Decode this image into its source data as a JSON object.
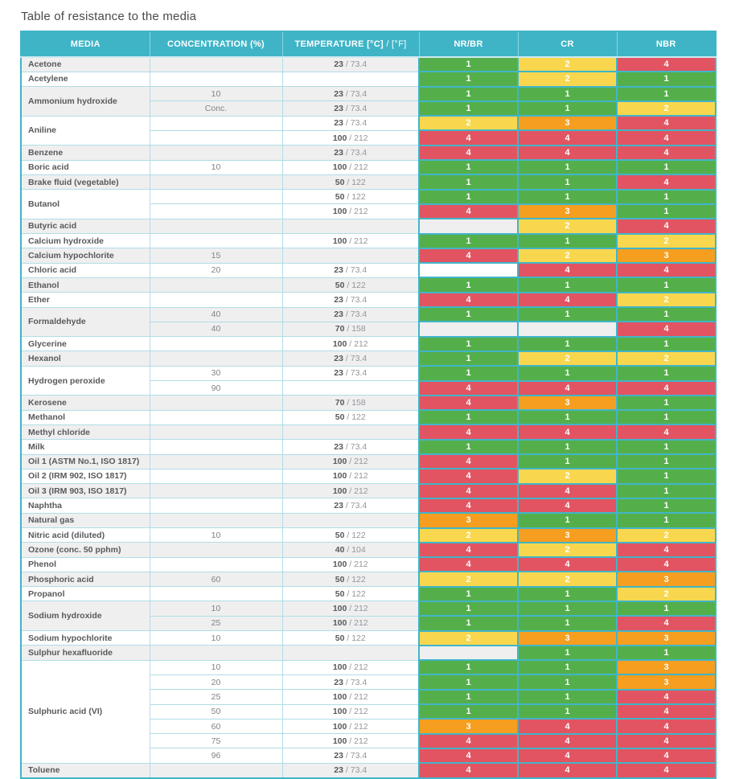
{
  "title": "Table of resistance to the media",
  "header": {
    "media": "MEDIA",
    "concentration": "CONCENTRATION (%)",
    "temperature_bold": "TEMPERATURE [°C]",
    "temperature_light": " / [°F]",
    "nr_br": "NR/BR",
    "cr": "CR",
    "nbr": "NBR"
  },
  "rating_colors": {
    "1": "#54af4b",
    "2": "#f8d74f",
    "3": "#f59e1f",
    "4": "#e25462"
  },
  "groups": [
    {
      "media": "Acetone",
      "rows": [
        {
          "conc": "",
          "temp_c": "23",
          "temp_f": "73.4",
          "nr_br": 1,
          "cr": 2,
          "nbr": 4
        }
      ]
    },
    {
      "media": "Acetylene",
      "rows": [
        {
          "conc": "",
          "temp_c": "",
          "temp_f": "",
          "nr_br": 1,
          "cr": 2,
          "nbr": 1
        }
      ]
    },
    {
      "media": "Ammonium hydroxide",
      "rows": [
        {
          "conc": "10",
          "temp_c": "23",
          "temp_f": "73.4",
          "nr_br": 1,
          "cr": 1,
          "nbr": 1
        },
        {
          "conc": "Conc.",
          "temp_c": "23",
          "temp_f": "73.4",
          "nr_br": 1,
          "cr": 1,
          "nbr": 2
        }
      ]
    },
    {
      "media": "Aniline",
      "rows": [
        {
          "conc": "",
          "temp_c": "23",
          "temp_f": "73.4",
          "nr_br": 2,
          "cr": 3,
          "nbr": 4
        },
        {
          "conc": "",
          "temp_c": "100",
          "temp_f": "212",
          "nr_br": 4,
          "cr": 4,
          "nbr": 4
        }
      ]
    },
    {
      "media": "Benzene",
      "rows": [
        {
          "conc": "",
          "temp_c": "23",
          "temp_f": "73.4",
          "nr_br": 4,
          "cr": 4,
          "nbr": 4
        }
      ]
    },
    {
      "media": "Boric acid",
      "rows": [
        {
          "conc": "10",
          "temp_c": "100",
          "temp_f": "212",
          "nr_br": 1,
          "cr": 1,
          "nbr": 1
        }
      ]
    },
    {
      "media": "Brake fluid (vegetable)",
      "rows": [
        {
          "conc": "",
          "temp_c": "50",
          "temp_f": "122",
          "nr_br": 1,
          "cr": 1,
          "nbr": 4
        }
      ]
    },
    {
      "media": "Butanol",
      "rows": [
        {
          "conc": "",
          "temp_c": "50",
          "temp_f": "122",
          "nr_br": 1,
          "cr": 1,
          "nbr": 1
        },
        {
          "conc": "",
          "temp_c": "100",
          "temp_f": "212",
          "nr_br": 4,
          "cr": 3,
          "nbr": 1
        }
      ]
    },
    {
      "media": "Butyric acid",
      "rows": [
        {
          "conc": "",
          "temp_c": "",
          "temp_f": "",
          "nr_br": null,
          "cr": 2,
          "nbr": 4
        }
      ]
    },
    {
      "media": "Calcium hydroxide",
      "rows": [
        {
          "conc": "",
          "temp_c": "100",
          "temp_f": "212",
          "nr_br": 1,
          "cr": 1,
          "nbr": 2
        }
      ]
    },
    {
      "media": "Calcium hypochlorite",
      "rows": [
        {
          "conc": "15",
          "temp_c": "",
          "temp_f": "",
          "nr_br": 4,
          "cr": 2,
          "nbr": 3
        }
      ]
    },
    {
      "media": "Chloric acid",
      "rows": [
        {
          "conc": "20",
          "temp_c": "23",
          "temp_f": "73.4",
          "nr_br": null,
          "cr": 4,
          "nbr": 4
        }
      ]
    },
    {
      "media": "Ethanol",
      "rows": [
        {
          "conc": "",
          "temp_c": "50",
          "temp_f": "122",
          "nr_br": 1,
          "cr": 1,
          "nbr": 1
        }
      ]
    },
    {
      "media": "Ether",
      "rows": [
        {
          "conc": "",
          "temp_c": "23",
          "temp_f": "73.4",
          "nr_br": 4,
          "cr": 4,
          "nbr": 2
        }
      ]
    },
    {
      "media": "Formaldehyde",
      "rows": [
        {
          "conc": "40",
          "temp_c": "23",
          "temp_f": "73.4",
          "nr_br": 1,
          "cr": 1,
          "nbr": 1
        },
        {
          "conc": "40",
          "temp_c": "70",
          "temp_f": "158",
          "nr_br": null,
          "cr": null,
          "nbr": 4
        }
      ]
    },
    {
      "media": "Glycerine",
      "rows": [
        {
          "conc": "",
          "temp_c": "100",
          "temp_f": "212",
          "nr_br": 1,
          "cr": 1,
          "nbr": 1
        }
      ]
    },
    {
      "media": "Hexanol",
      "rows": [
        {
          "conc": "",
          "temp_c": "23",
          "temp_f": "73.4",
          "nr_br": 1,
          "cr": 2,
          "nbr": 2
        }
      ]
    },
    {
      "media": "Hydrogen peroxide",
      "rows": [
        {
          "conc": "30",
          "temp_c": "23",
          "temp_f": "73.4",
          "nr_br": 1,
          "cr": 1,
          "nbr": 1
        },
        {
          "conc": "90",
          "temp_c": "",
          "temp_f": "",
          "nr_br": 4,
          "cr": 4,
          "nbr": 4
        }
      ]
    },
    {
      "media": "Kerosene",
      "rows": [
        {
          "conc": "",
          "temp_c": "70",
          "temp_f": "158",
          "nr_br": 4,
          "cr": 3,
          "nbr": 1
        }
      ]
    },
    {
      "media": "Methanol",
      "rows": [
        {
          "conc": "",
          "temp_c": "50",
          "temp_f": "122",
          "nr_br": 1,
          "cr": 1,
          "nbr": 1
        }
      ]
    },
    {
      "media": "Methyl chloride",
      "rows": [
        {
          "conc": "",
          "temp_c": "",
          "temp_f": "",
          "nr_br": 4,
          "cr": 4,
          "nbr": 4
        }
      ]
    },
    {
      "media": "Milk",
      "rows": [
        {
          "conc": "",
          "temp_c": "23",
          "temp_f": "73.4",
          "nr_br": 1,
          "cr": 1,
          "nbr": 1
        }
      ]
    },
    {
      "media": "Oil 1 (ASTM No.1, ISO 1817)",
      "rows": [
        {
          "conc": "",
          "temp_c": "100",
          "temp_f": "212",
          "nr_br": 4,
          "cr": 1,
          "nbr": 1
        }
      ]
    },
    {
      "media": "Oil 2 (IRM 902, ISO 1817)",
      "rows": [
        {
          "conc": "",
          "temp_c": "100",
          "temp_f": "212",
          "nr_br": 4,
          "cr": 2,
          "nbr": 1
        }
      ]
    },
    {
      "media": "Oil 3 (IRM 903, ISO 1817)",
      "rows": [
        {
          "conc": "",
          "temp_c": "100",
          "temp_f": "212",
          "nr_br": 4,
          "cr": 4,
          "nbr": 1
        }
      ]
    },
    {
      "media": "Naphtha",
      "rows": [
        {
          "conc": "",
          "temp_c": "23",
          "temp_f": "73.4",
          "nr_br": 4,
          "cr": 4,
          "nbr": 1
        }
      ]
    },
    {
      "media": "Natural gas",
      "rows": [
        {
          "conc": "",
          "temp_c": "",
          "temp_f": "",
          "nr_br": 3,
          "cr": 1,
          "nbr": 1
        }
      ]
    },
    {
      "media": "Nitric acid (diluted)",
      "rows": [
        {
          "conc": "10",
          "temp_c": "50",
          "temp_f": "122",
          "nr_br": 2,
          "cr": 3,
          "nbr": 2
        }
      ]
    },
    {
      "media": "Ozone (conc. 50 pphm)",
      "rows": [
        {
          "conc": "",
          "temp_c": "40",
          "temp_f": "104",
          "nr_br": 4,
          "cr": 2,
          "nbr": 4
        }
      ]
    },
    {
      "media": "Phenol",
      "rows": [
        {
          "conc": "",
          "temp_c": "100",
          "temp_f": "212",
          "nr_br": 4,
          "cr": 4,
          "nbr": 4
        }
      ]
    },
    {
      "media": "Phosphoric acid",
      "rows": [
        {
          "conc": "60",
          "temp_c": "50",
          "temp_f": "122",
          "nr_br": 2,
          "cr": 2,
          "nbr": 3
        }
      ]
    },
    {
      "media": "Propanol",
      "rows": [
        {
          "conc": "",
          "temp_c": "50",
          "temp_f": "122",
          "nr_br": 1,
          "cr": 1,
          "nbr": 2
        }
      ]
    },
    {
      "media": "Sodium hydroxide",
      "rows": [
        {
          "conc": "10",
          "temp_c": "100",
          "temp_f": "212",
          "nr_br": 1,
          "cr": 1,
          "nbr": 1
        },
        {
          "conc": "25",
          "temp_c": "100",
          "temp_f": "212",
          "nr_br": 1,
          "cr": 1,
          "nbr": 4
        }
      ]
    },
    {
      "media": "Sodium hypochlorite",
      "rows": [
        {
          "conc": "10",
          "temp_c": "50",
          "temp_f": "122",
          "nr_br": 2,
          "cr": 3,
          "nbr": 3
        }
      ]
    },
    {
      "media": "Sulphur hexafluoride",
      "rows": [
        {
          "conc": "",
          "temp_c": "",
          "temp_f": "",
          "nr_br": null,
          "cr": 1,
          "nbr": 1
        }
      ]
    },
    {
      "media": "Sulphuric acid (VI)",
      "rows": [
        {
          "conc": "10",
          "temp_c": "100",
          "temp_f": "212",
          "nr_br": 1,
          "cr": 1,
          "nbr": 3
        },
        {
          "conc": "20",
          "temp_c": "23",
          "temp_f": "73.4",
          "nr_br": 1,
          "cr": 1,
          "nbr": 3
        },
        {
          "conc": "25",
          "temp_c": "100",
          "temp_f": "212",
          "nr_br": 1,
          "cr": 1,
          "nbr": 4
        },
        {
          "conc": "50",
          "temp_c": "100",
          "temp_f": "212",
          "nr_br": 1,
          "cr": 1,
          "nbr": 4
        },
        {
          "conc": "60",
          "temp_c": "100",
          "temp_f": "212",
          "nr_br": 3,
          "cr": 4,
          "nbr": 4
        },
        {
          "conc": "75",
          "temp_c": "100",
          "temp_f": "212",
          "nr_br": 4,
          "cr": 4,
          "nbr": 4
        },
        {
          "conc": "96",
          "temp_c": "23",
          "temp_f": "73.4",
          "nr_br": 4,
          "cr": 4,
          "nbr": 4
        }
      ]
    },
    {
      "media": "Toluene",
      "rows": [
        {
          "conc": "",
          "temp_c": "23",
          "temp_f": "73.4",
          "nr_br": 4,
          "cr": 4,
          "nbr": 4
        }
      ]
    }
  ]
}
